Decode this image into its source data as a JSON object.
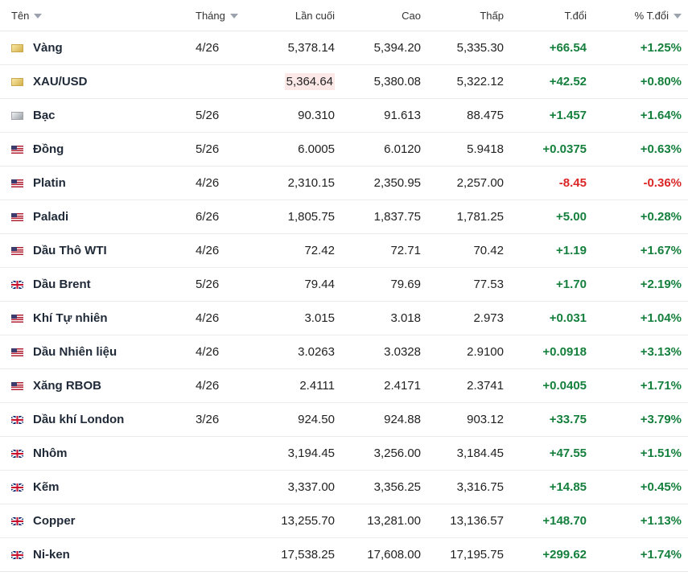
{
  "header": {
    "name": "Tên",
    "month": "Tháng",
    "last": "Lần cuối",
    "high": "Cao",
    "low": "Thấp",
    "change": "T.đổi",
    "pct": "% T.đổi"
  },
  "rows": [
    {
      "flag": "gold-swatch",
      "name": "Vàng",
      "month": "4/26",
      "last": "5,378.14",
      "high": "5,394.20",
      "low": "5,335.30",
      "change": "+66.54",
      "pct": "+1.25%",
      "dir": "pos"
    },
    {
      "flag": "gold-swatch",
      "name": "XAU/USD",
      "month": "",
      "last": "5,364.64",
      "high": "5,380.08",
      "low": "5,322.12",
      "change": "+42.52",
      "pct": "+0.80%",
      "dir": "pos",
      "highlight": true
    },
    {
      "flag": "silver-swatch",
      "name": "Bạc",
      "month": "5/26",
      "last": "90.310",
      "high": "91.613",
      "low": "88.475",
      "change": "+1.457",
      "pct": "+1.64%",
      "dir": "pos"
    },
    {
      "flag": "us-flag",
      "name": "Đồng",
      "month": "5/26",
      "last": "6.0005",
      "high": "6.0120",
      "low": "5.9418",
      "change": "+0.0375",
      "pct": "+0.63%",
      "dir": "pos"
    },
    {
      "flag": "us-flag",
      "name": "Platin",
      "month": "4/26",
      "last": "2,310.15",
      "high": "2,350.95",
      "low": "2,257.00",
      "change": "-8.45",
      "pct": "-0.36%",
      "dir": "neg"
    },
    {
      "flag": "us-flag",
      "name": "Paladi",
      "month": "6/26",
      "last": "1,805.75",
      "high": "1,837.75",
      "low": "1,781.25",
      "change": "+5.00",
      "pct": "+0.28%",
      "dir": "pos"
    },
    {
      "flag": "us-flag",
      "name": "Dầu Thô WTI",
      "month": "4/26",
      "last": "72.42",
      "high": "72.71",
      "low": "70.42",
      "change": "+1.19",
      "pct": "+1.67%",
      "dir": "pos"
    },
    {
      "flag": "uk-flag",
      "name": "Dầu Brent",
      "month": "5/26",
      "last": "79.44",
      "high": "79.69",
      "low": "77.53",
      "change": "+1.70",
      "pct": "+2.19%",
      "dir": "pos"
    },
    {
      "flag": "us-flag",
      "name": "Khí Tự nhiên",
      "month": "4/26",
      "last": "3.015",
      "high": "3.018",
      "low": "2.973",
      "change": "+0.031",
      "pct": "+1.04%",
      "dir": "pos"
    },
    {
      "flag": "us-flag",
      "name": "Dầu Nhiên liệu",
      "month": "4/26",
      "last": "3.0263",
      "high": "3.0328",
      "low": "2.9100",
      "change": "+0.0918",
      "pct": "+3.13%",
      "dir": "pos"
    },
    {
      "flag": "us-flag",
      "name": "Xăng RBOB",
      "month": "4/26",
      "last": "2.4111",
      "high": "2.4171",
      "low": "2.3741",
      "change": "+0.0405",
      "pct": "+1.71%",
      "dir": "pos"
    },
    {
      "flag": "uk-flag",
      "name": "Dầu khí London",
      "month": "3/26",
      "last": "924.50",
      "high": "924.88",
      "low": "903.12",
      "change": "+33.75",
      "pct": "+3.79%",
      "dir": "pos"
    },
    {
      "flag": "uk-flag",
      "name": "Nhôm",
      "month": "",
      "last": "3,194.45",
      "high": "3,256.00",
      "low": "3,184.45",
      "change": "+47.55",
      "pct": "+1.51%",
      "dir": "pos"
    },
    {
      "flag": "uk-flag",
      "name": "Kẽm",
      "month": "",
      "last": "3,337.00",
      "high": "3,356.25",
      "low": "3,316.75",
      "change": "+14.85",
      "pct": "+0.45%",
      "dir": "pos"
    },
    {
      "flag": "uk-flag",
      "name": "Copper",
      "month": "",
      "last": "13,255.70",
      "high": "13,281.00",
      "low": "13,136.57",
      "change": "+148.70",
      "pct": "+1.13%",
      "dir": "pos"
    },
    {
      "flag": "uk-flag",
      "name": "Ni-ken",
      "month": "",
      "last": "17,538.25",
      "high": "17,608.00",
      "low": "17,195.75",
      "change": "+299.62",
      "pct": "+1.74%",
      "dir": "pos"
    }
  ],
  "colors": {
    "positive": "#15803d",
    "negative": "#dc2626",
    "highlight": "#fde8e8"
  }
}
